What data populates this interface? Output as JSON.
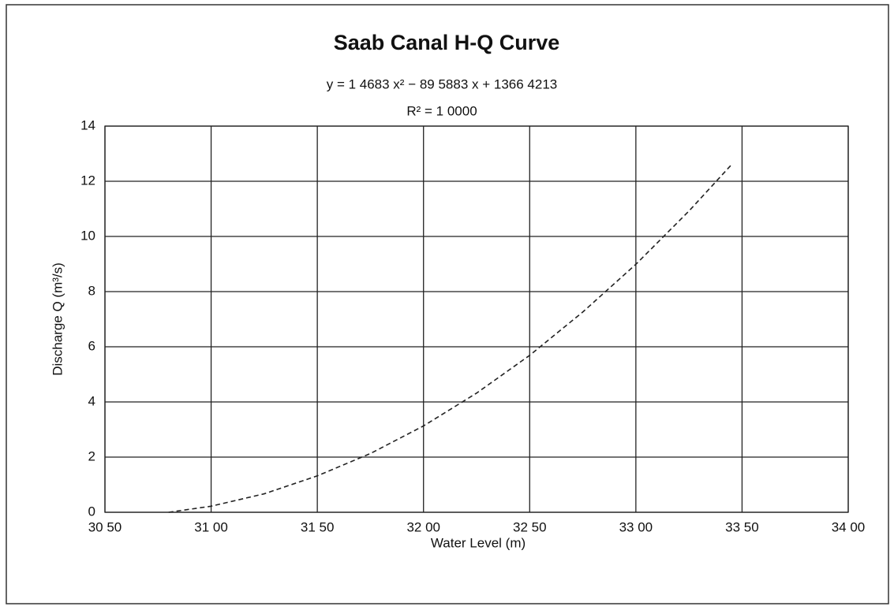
{
  "chart_data": {
    "type": "line",
    "title": "Saab Canal H-Q Curve",
    "annotations": [
      "y = 1 4683 x² − 89 5883 x + 1366 4213",
      "R² = 1 0000"
    ],
    "x_label": "Water Level (m)",
    "y_label": "Discharge Q (m³/s)",
    "x": [
      30.8,
      31.0,
      31.25,
      31.5,
      31.75,
      32.0,
      32.25,
      32.5,
      32.75,
      33.0,
      33.25,
      33.45
    ],
    "series": [
      {
        "name": "H-Q",
        "color": "#222222",
        "values": [
          0,
          0.22,
          0.67,
          1.32,
          2.13,
          3.13,
          4.32,
          5.69,
          7.26,
          8.99,
          10.92,
          12.6
        ]
      }
    ],
    "xlim": [
      30.5,
      34.0
    ],
    "xticks": [
      {
        "value": 30.5,
        "label": "30 50"
      },
      {
        "value": 31.0,
        "label": "31 00"
      },
      {
        "value": 31.5,
        "label": "31 50"
      },
      {
        "value": 32.0,
        "label": "32 00"
      },
      {
        "value": 32.5,
        "label": "32 50"
      },
      {
        "value": 33.0,
        "label": "33 00"
      },
      {
        "value": 33.5,
        "label": "33 50"
      },
      {
        "value": 34.0,
        "label": "34 00"
      }
    ],
    "ylim": [
      0,
      14
    ],
    "yticks": [
      0,
      2,
      4,
      6,
      8,
      10,
      12,
      14
    ],
    "grid": true,
    "line_style": "dashed"
  }
}
